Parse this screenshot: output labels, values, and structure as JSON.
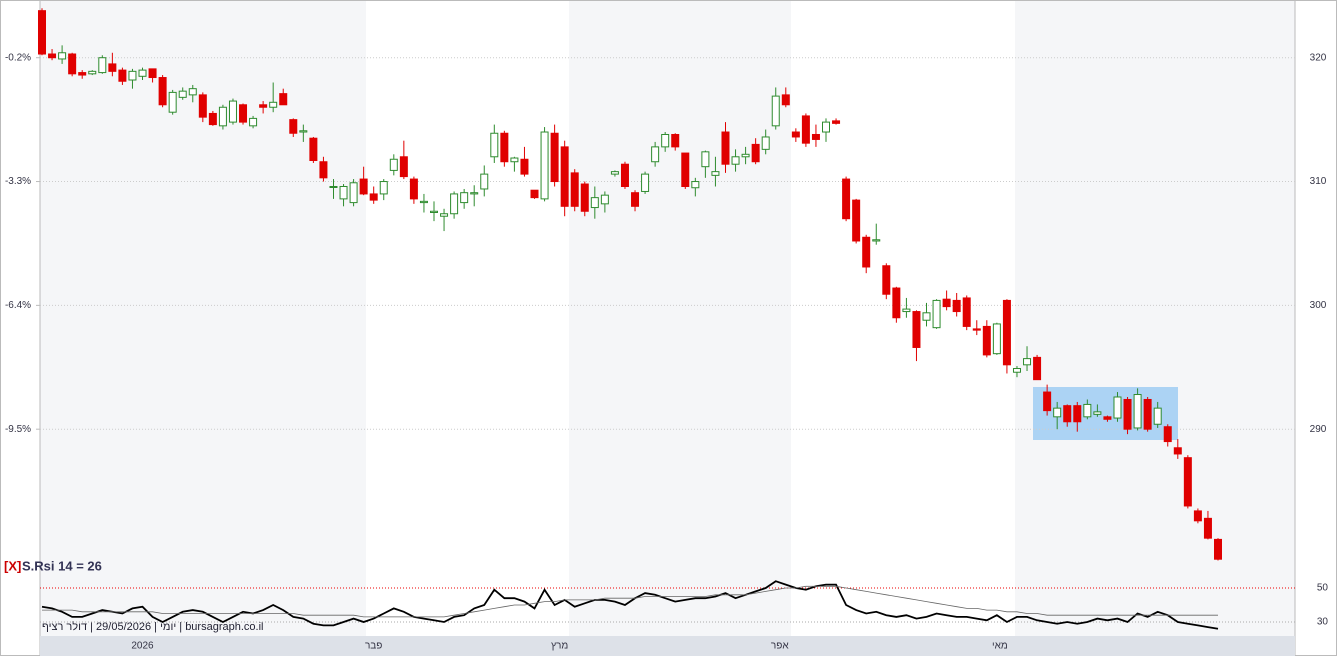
{
  "chart_data": {
    "type": "candlestick",
    "caption": "יומי | 29/05/2026 | דולר רציף | bursagraph.co.il",
    "up_color": "#2e8b2e",
    "down_color": "#e00000",
    "xticks": [
      {
        "value": 10,
        "label": "2026"
      },
      {
        "value": 33,
        "label": "פבר"
      },
      {
        "value": 51.5,
        "label": "מרץ"
      },
      {
        "value": 73.4,
        "label": "אפר"
      },
      {
        "value": 95.3,
        "label": "מאי"
      }
    ],
    "ylim": [
      279,
      324.5
    ],
    "yticks": [
      290,
      300,
      310,
      320
    ],
    "grid": true,
    "y2lim": [
      -12.91,
      1.195
    ],
    "y2ticks": [
      {
        "value": -9.5,
        "label": "-9.5%"
      },
      {
        "value": -6.4,
        "label": "-6.4%"
      },
      {
        "value": -3.3,
        "label": "-3.3%"
      },
      {
        "value": -0.2,
        "label": "-0.2%"
      }
    ],
    "ohlc": [
      [
        323.8,
        324,
        320.2,
        320.3
      ],
      [
        320.3,
        320.7,
        319.8,
        320.0
      ],
      [
        319.9,
        321,
        319.5,
        320.4
      ],
      [
        320.3,
        320.4,
        318.5,
        318.7
      ],
      [
        318.8,
        319,
        318.3,
        318.6
      ],
      [
        318.7,
        319,
        318.6,
        318.9
      ],
      [
        318.8,
        320.2,
        318.7,
        320.0
      ],
      [
        319.5,
        320.4,
        318.5,
        318.9
      ],
      [
        319,
        319.2,
        317.8,
        318.1
      ],
      [
        318.2,
        319.1,
        317.5,
        318.9
      ],
      [
        318.5,
        319.2,
        318.2,
        319.0
      ],
      [
        319.1,
        319.1,
        318.0,
        318.4
      ],
      [
        318.4,
        318.6,
        316.0,
        316.2
      ],
      [
        315.6,
        317.4,
        315.4,
        317.2
      ],
      [
        316.8,
        317.6,
        316.6,
        317.3
      ],
      [
        317.0,
        317.8,
        316.4,
        317.5
      ],
      [
        317.0,
        317.2,
        314.8,
        315.2
      ],
      [
        315.5,
        315.7,
        314.5,
        314.6
      ],
      [
        314.5,
        316.2,
        314.2,
        316.0
      ],
      [
        314.8,
        316.7,
        314.6,
        316.5
      ],
      [
        316.2,
        316.3,
        314.6,
        314.8
      ],
      [
        314.5,
        315.3,
        314.3,
        315.1
      ],
      [
        316.2,
        316.5,
        315.5,
        316.0
      ],
      [
        316.0,
        318.0,
        315.6,
        316.4
      ],
      [
        317.1,
        317.5,
        316.2,
        316.2
      ],
      [
        315.0,
        315.1,
        313.6,
        313.9
      ],
      [
        314.0,
        314.6,
        313.2,
        314.1
      ],
      [
        313.5,
        313.6,
        311.5,
        311.7
      ],
      [
        311.6,
        312.0,
        310.0,
        310.3
      ],
      [
        309.6,
        310.2,
        308.6,
        309.6
      ],
      [
        308.6,
        309.8,
        308.0,
        309.6
      ],
      [
        308.3,
        310.2,
        308.0,
        309.9
      ],
      [
        310.2,
        311.2,
        308.9,
        309.0
      ],
      [
        309.0,
        309.6,
        308.2,
        308.5
      ],
      [
        309.0,
        310.2,
        308.5,
        310.0
      ],
      [
        310.9,
        312.2,
        310.5,
        311.8
      ],
      [
        312.0,
        313.3,
        310.2,
        310.4
      ],
      [
        310.2,
        310.4,
        308.2,
        308.6
      ],
      [
        308.3,
        309.0,
        307.5,
        308.4
      ],
      [
        307.5,
        308.4,
        306.8,
        307.6
      ],
      [
        307.2,
        307.8,
        306.0,
        307.4
      ],
      [
        307.4,
        309.2,
        307.0,
        309.0
      ],
      [
        308.3,
        309.4,
        307.8,
        309.1
      ],
      [
        309.0,
        309.7,
        308.0,
        309.1
      ],
      [
        309.4,
        311.3,
        308.8,
        310.6
      ],
      [
        312.0,
        314.6,
        311.5,
        313.9
      ],
      [
        313.9,
        314.1,
        311.2,
        311.6
      ],
      [
        311.6,
        312.0,
        310.8,
        311.9
      ],
      [
        311.8,
        312.8,
        310.4,
        310.6
      ],
      [
        309.3,
        309.3,
        308.6,
        308.7
      ],
      [
        308.6,
        314.4,
        308.4,
        314.0
      ],
      [
        313.9,
        314.6,
        309.6,
        310.0
      ],
      [
        312.8,
        313.3,
        307.2,
        308.0
      ],
      [
        310.7,
        311.0,
        307.6,
        308.0
      ],
      [
        309.8,
        310.0,
        307.2,
        307.6
      ],
      [
        307.9,
        309.6,
        307.0,
        308.7
      ],
      [
        308.2,
        309.2,
        307.5,
        308.9
      ],
      [
        310.6,
        310.9,
        310.4,
        310.8
      ],
      [
        311.4,
        311.6,
        309.4,
        309.6
      ],
      [
        309.1,
        309.3,
        307.6,
        308.0
      ],
      [
        309.2,
        310.8,
        309.0,
        310.6
      ],
      [
        311.6,
        313.2,
        311.2,
        312.8
      ],
      [
        312.8,
        314.0,
        312.4,
        313.8
      ],
      [
        313.8,
        313.9,
        312.5,
        312.8
      ],
      [
        312.3,
        312.3,
        309.4,
        309.6
      ],
      [
        309.5,
        310.3,
        308.8,
        310.0
      ],
      [
        311.2,
        312.5,
        310.3,
        312.4
      ],
      [
        310.5,
        312.0,
        309.6,
        310.8
      ],
      [
        314.0,
        314.8,
        310.7,
        311.4
      ],
      [
        311.4,
        312.6,
        310.8,
        312.0
      ],
      [
        312.0,
        312.8,
        311.4,
        312.2
      ],
      [
        313.0,
        313.5,
        311.4,
        311.6
      ],
      [
        312.6,
        314.2,
        312.2,
        313.6
      ],
      [
        314.5,
        317.6,
        314.2,
        316.9
      ],
      [
        317.0,
        317.6,
        316.0,
        316.2
      ],
      [
        314.0,
        314.3,
        313.2,
        313.6
      ],
      [
        315.3,
        315.5,
        312.8,
        313.1
      ],
      [
        313.8,
        314.6,
        312.8,
        313.4
      ],
      [
        314.0,
        315.1,
        313.2,
        314.8
      ],
      [
        314.9,
        315.1,
        314.6,
        314.7
      ],
      [
        310.2,
        310.4,
        306.8,
        307.0
      ],
      [
        308.5,
        308.6,
        305.0,
        305.2
      ],
      [
        305.5,
        305.7,
        302.6,
        303.1
      ],
      [
        305.2,
        306.6,
        304.9,
        305.3
      ],
      [
        303.2,
        303.4,
        300.5,
        300.9
      ],
      [
        301.4,
        301.5,
        298.6,
        299.0
      ],
      [
        299.5,
        300.6,
        299.0,
        299.7
      ],
      [
        299.5,
        299.6,
        295.5,
        296.6
      ],
      [
        298.8,
        300.2,
        298.3,
        299.4
      ],
      [
        298.2,
        300.5,
        298.1,
        300.4
      ],
      [
        300.5,
        301.2,
        299.6,
        299.9
      ],
      [
        300.4,
        301.0,
        299.1,
        299.5
      ],
      [
        300.6,
        300.8,
        298.0,
        298.3
      ],
      [
        298.1,
        298.8,
        297.6,
        298.0
      ],
      [
        298.3,
        298.8,
        295.8,
        296.0
      ],
      [
        296.1,
        298.6,
        296.0,
        298.5
      ],
      [
        300.4,
        300.5,
        294.5,
        295.2
      ],
      [
        294.6,
        295.1,
        294.2,
        294.9
      ],
      [
        295.2,
        296.7,
        294.7,
        295.7
      ],
      [
        295.8,
        296.0,
        294.0,
        294.0
      ],
      [
        293.0,
        293.6,
        291.1,
        291.5
      ],
      [
        291.0,
        292.2,
        290.0,
        291.7
      ],
      [
        291.9,
        292.0,
        290.2,
        290.6
      ],
      [
        291.9,
        292.2,
        289.8,
        290.6
      ],
      [
        291.0,
        292.4,
        290.8,
        292.0
      ],
      [
        291.2,
        292.0,
        291.0,
        291.4
      ],
      [
        291.0,
        291.1,
        290.6,
        290.8
      ],
      [
        290.9,
        293.0,
        290.6,
        292.6
      ],
      [
        292.4,
        292.6,
        289.6,
        290.0
      ],
      [
        290.1,
        293.3,
        289.9,
        292.8
      ],
      [
        292.4,
        292.6,
        289.8,
        290.0
      ],
      [
        290.4,
        292.2,
        290.1,
        291.7
      ],
      [
        290.2,
        290.4,
        288.6,
        289.0
      ],
      [
        288.5,
        289.2,
        287.6,
        288.0
      ],
      [
        287.7,
        287.9,
        283.6,
        283.8
      ],
      [
        283.4,
        283.6,
        282.4,
        282.6
      ],
      [
        282.8,
        283.4,
        281.1,
        281.2
      ],
      [
        281.1,
        281.2,
        279.4,
        279.5
      ]
    ]
  },
  "rsi_panel": {
    "type": "line",
    "close_label": "[X]",
    "label": "S.Rsi 14 = 26",
    "ylim": [
      24,
      61
    ],
    "yticks": [
      30,
      50
    ],
    "series": [
      {
        "color": "#000000",
        "values": [
          39,
          38,
          36,
          33,
          33,
          35,
          37,
          36,
          35,
          38,
          39,
          33,
          30,
          33,
          36,
          37,
          36,
          33,
          30,
          33,
          36,
          35,
          37,
          40,
          37,
          33,
          32,
          29,
          28,
          28,
          30,
          32,
          30,
          32,
          35,
          38,
          36,
          33,
          32,
          31,
          30,
          33,
          34,
          38,
          40,
          49,
          44,
          44,
          42,
          38,
          49,
          40,
          43,
          39,
          41,
          43,
          43,
          42,
          40,
          44,
          47,
          46,
          44,
          42,
          43,
          44,
          44,
          45,
          47,
          44,
          46,
          48,
          50,
          54,
          52,
          50,
          49,
          51,
          52,
          52,
          40,
          37,
          35,
          36,
          34,
          33,
          34,
          32,
          33,
          35,
          34,
          33,
          33,
          32,
          31,
          34,
          30,
          33,
          33,
          31,
          30,
          29,
          30,
          29,
          30,
          32,
          31,
          32,
          30,
          35,
          33,
          36,
          34,
          30,
          29,
          28,
          27,
          26
        ]
      },
      {
        "color": "#666666",
        "values": [
          37,
          37,
          37,
          37,
          36,
          36,
          36,
          36,
          36,
          36,
          36,
          36,
          35,
          35,
          35,
          35,
          35,
          35,
          35,
          35,
          35,
          35,
          35,
          35,
          35,
          35,
          34,
          34,
          34,
          34,
          34,
          34,
          33,
          33,
          33,
          33,
          33,
          33,
          33,
          33,
          33,
          34,
          35,
          36,
          37,
          38,
          39,
          40,
          40,
          41,
          42,
          42,
          43,
          43,
          43,
          43,
          44,
          44,
          44,
          44,
          45,
          45,
          45,
          45,
          45,
          45,
          45,
          46,
          46,
          46,
          46,
          47,
          48,
          49,
          50,
          50,
          51,
          51,
          51,
          51,
          50,
          49,
          48,
          47,
          46,
          45,
          44,
          43,
          42,
          41,
          40,
          39,
          38,
          38,
          37,
          37,
          36,
          36,
          35,
          35,
          34,
          34,
          34,
          34,
          34,
          34,
          34,
          34,
          34,
          34,
          34,
          34,
          34,
          34,
          34,
          34,
          34,
          34
        ]
      }
    ]
  }
}
